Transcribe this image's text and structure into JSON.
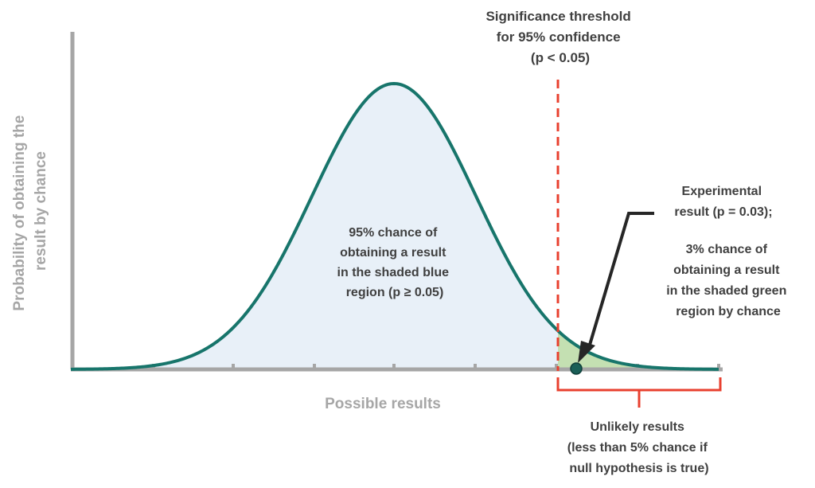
{
  "threshold_label": [
    "Significance threshold",
    "for 95% confidence",
    "(p < 0.05)"
  ],
  "y_axis_label": [
    "Probability of obtaining the",
    "result by chance"
  ],
  "x_axis_label": "Possible results",
  "blue_region_label": [
    "95% chance of",
    "obtaining a result",
    "in the shaded blue",
    "region (p ≥ 0.05)"
  ],
  "experimental_label": [
    "Experimental",
    "result (p = 0.03);"
  ],
  "green_region_label": [
    "3% chance of",
    "obtaining a result",
    "in the shaded green",
    "region by chance"
  ],
  "unlikely_label": [
    "Unlikely results",
    "(less than 5% chance if",
    "null hypothesis is true)"
  ],
  "colors": {
    "curve": "#17756b",
    "blue_fill": "#e8f0f8",
    "green_fill": "#c4e0b2",
    "threshold_line": "#e8402f",
    "bracket": "#e8402f",
    "axis": "#a6a6a6",
    "axis_label": "#a6a6a6",
    "text": "#404040",
    "arrow": "#262626",
    "result_dot": "#1a5f57"
  }
}
